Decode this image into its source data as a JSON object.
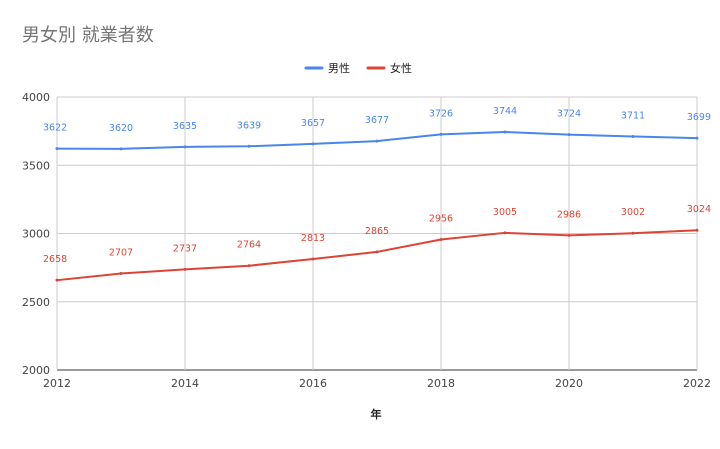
{
  "chart_data": {
    "type": "line",
    "title": "男女別 就業者数",
    "xlabel": "年",
    "ylabel": "",
    "x": [
      2012,
      2013,
      2014,
      2015,
      2016,
      2017,
      2018,
      2019,
      2020,
      2021,
      2022
    ],
    "x_ticks": [
      2012,
      2014,
      2016,
      2018,
      2020,
      2022
    ],
    "xlim": [
      2012,
      2022
    ],
    "ylim": [
      2000,
      4000
    ],
    "y_ticks": [
      2000,
      2500,
      3000,
      3500,
      4000
    ],
    "grid": true,
    "legend_position": "top-center",
    "series": [
      {
        "name": "男性",
        "color": "#4a86e8",
        "values": [
          3622,
          3620,
          3635,
          3639,
          3657,
          3677,
          3726,
          3744,
          3724,
          3711,
          3699
        ]
      },
      {
        "name": "女性",
        "color": "#db4437",
        "values": [
          2658,
          2707,
          2737,
          2764,
          2813,
          2865,
          2956,
          3005,
          2986,
          3002,
          3024
        ]
      }
    ]
  }
}
